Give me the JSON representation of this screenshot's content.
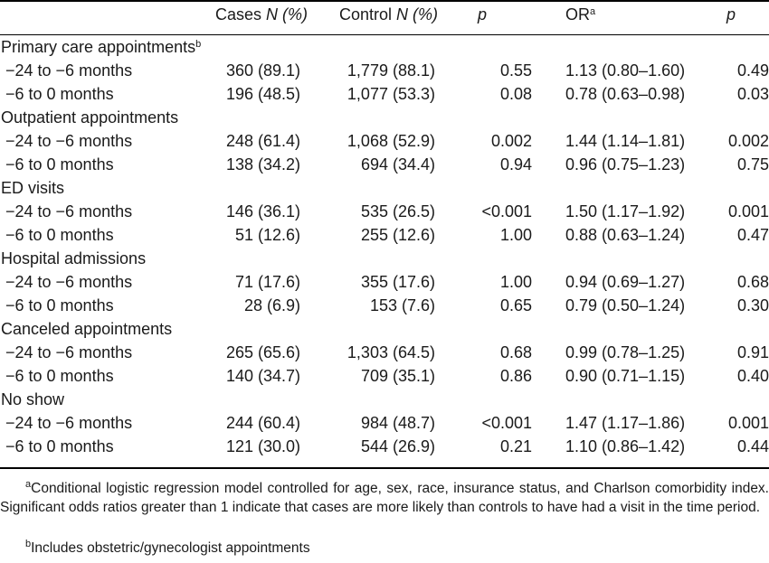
{
  "header": {
    "cases": "Cases",
    "cases_unit": "N (%)",
    "control": "Control",
    "control_unit": "N (%)",
    "p": "p",
    "or": "OR",
    "or_sup": "a",
    "p2": "p"
  },
  "groups": [
    {
      "title": "Primary care appointments",
      "sup": "b",
      "rows": [
        {
          "label": "−24 to −6 months",
          "cases": "360 (89.1)",
          "control": "1,779 (88.1)",
          "p": "0.55",
          "or": "1.13 (0.80–1.60)",
          "p2": "0.49"
        },
        {
          "label": "−6 to 0 months",
          "cases": "196 (48.5)",
          "control": "1,077 (53.3)",
          "p": "0.08",
          "or": "0.78 (0.63–0.98)",
          "p2": "0.03"
        }
      ]
    },
    {
      "title": "Outpatient appointments",
      "sup": "",
      "rows": [
        {
          "label": "−24 to −6 months",
          "cases": "248 (61.4)",
          "control": "1,068 (52.9)",
          "p": "0.002",
          "or": "1.44 (1.14–1.81)",
          "p2": "0.002"
        },
        {
          "label": "−6 to 0 months",
          "cases": "138 (34.2)",
          "control": "694 (34.4)",
          "p": "0.94",
          "or": "0.96 (0.75–1.23)",
          "p2": "0.75"
        }
      ]
    },
    {
      "title": "ED visits",
      "sup": "",
      "rows": [
        {
          "label": "−24 to −6 months",
          "cases": "146 (36.1)",
          "control": "535 (26.5)",
          "p": "<0.001",
          "or": "1.50 (1.17–1.92)",
          "p2": "0.001"
        },
        {
          "label": "−6 to 0 months",
          "cases": "51 (12.6)",
          "control": "255 (12.6)",
          "p": "1.00",
          "or": "0.88 (0.63–1.24)",
          "p2": "0.47"
        }
      ]
    },
    {
      "title": "Hospital admissions",
      "sup": "",
      "rows": [
        {
          "label": "−24 to −6 months",
          "cases": "71 (17.6)",
          "control": "355 (17.6)",
          "p": "1.00",
          "or": "0.94 (0.69–1.27)",
          "p2": "0.68"
        },
        {
          "label": "−6 to 0 months",
          "cases": "28 (6.9)",
          "control": "153 (7.6)",
          "p": "0.65",
          "or": "0.79 (0.50–1.24)",
          "p2": "0.30"
        }
      ]
    },
    {
      "title": "Canceled appointments",
      "sup": "",
      "rows": [
        {
          "label": "−24 to −6 months",
          "cases": "265 (65.6)",
          "control": "1,303 (64.5)",
          "p": "0.68",
          "or": "0.99 (0.78–1.25)",
          "p2": "0.91"
        },
        {
          "label": "−6 to 0 months",
          "cases": "140 (34.7)",
          "control": "709 (35.1)",
          "p": "0.86",
          "or": "0.90 (0.71–1.15)",
          "p2": "0.40"
        }
      ]
    },
    {
      "title": "No show",
      "sup": "",
      "rows": [
        {
          "label": "−24 to −6 months",
          "cases": "244 (60.4)",
          "control": "984 (48.7)",
          "p": "<0.001",
          "or": "1.47 (1.17–1.86)",
          "p2": "0.001"
        },
        {
          "label": "−6 to 0 months",
          "cases": "121 (30.0)",
          "control": "544 (26.9)",
          "p": "0.21",
          "or": "1.10 (0.86–1.42)",
          "p2": "0.44"
        }
      ]
    }
  ],
  "footnotes": {
    "a_mark": "a",
    "a_text": "Conditional logistic regression model controlled for age, sex, race, insurance status, and Charlson comorbidity index. Significant odds ratios greater than 1 indicate that cases are more likely than controls to have had a visit in the time period.",
    "b_mark": "b",
    "b_text": "Includes obstetric/gynecologist appointments"
  }
}
